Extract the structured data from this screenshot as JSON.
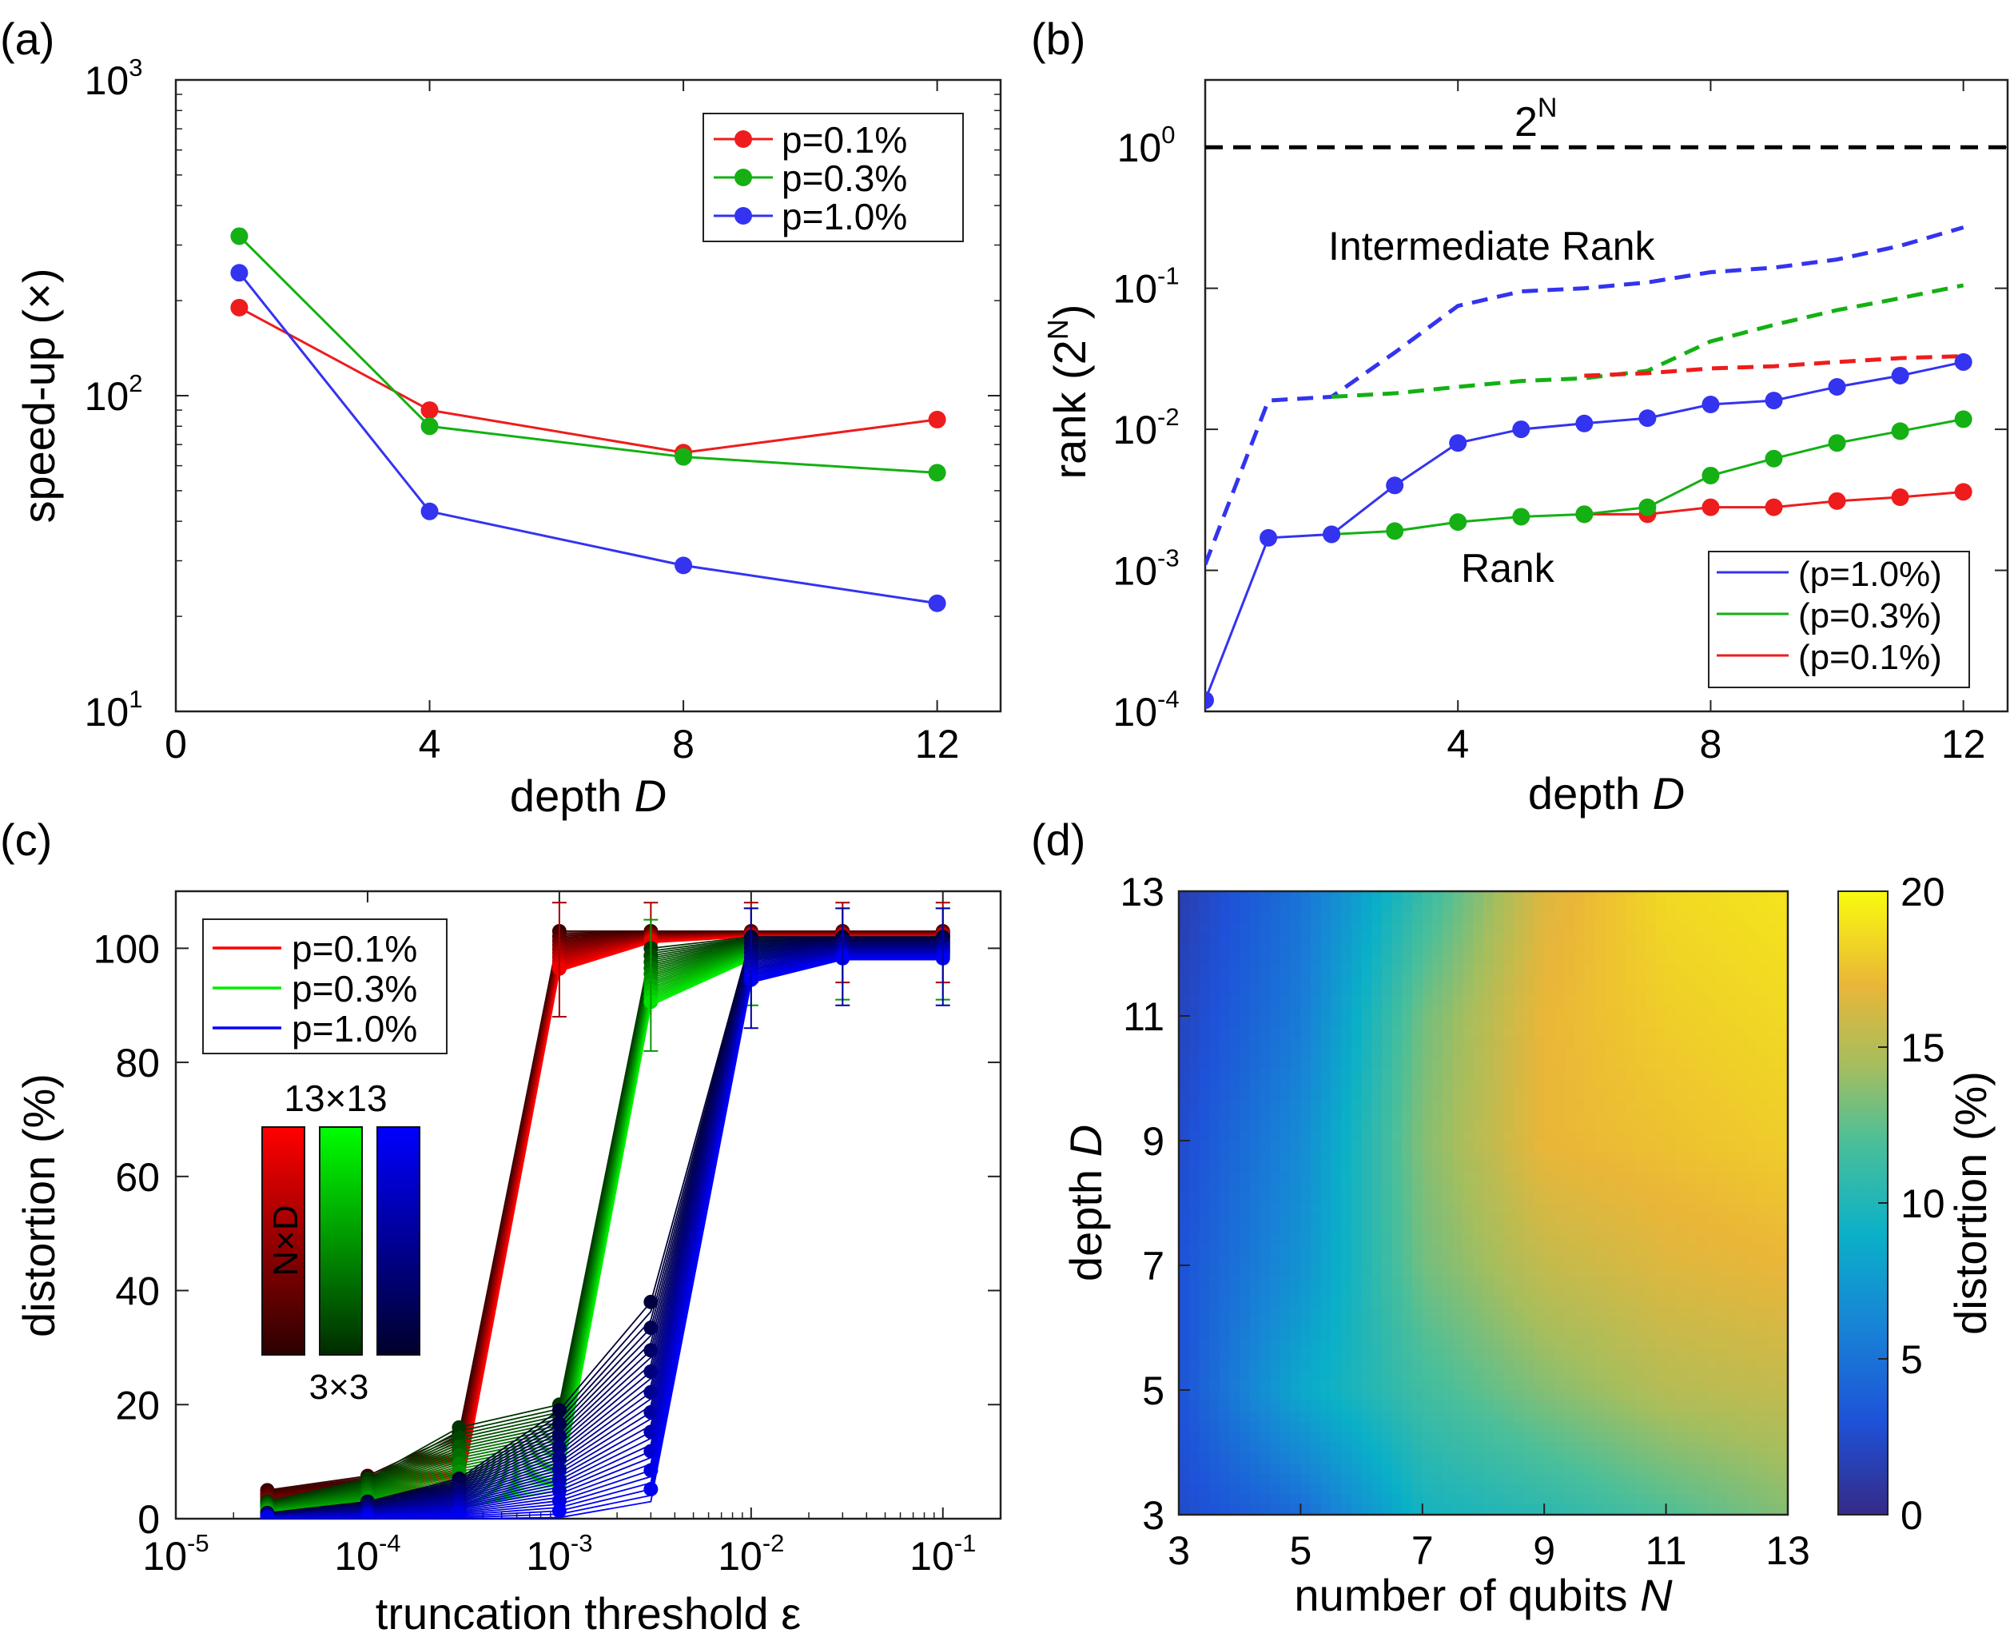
{
  "chart_data": [
    {
      "panel": "(a)",
      "type": "line",
      "xlabel": "depth",
      "xlabel_italic": "D",
      "ylabel": "speed-up (×)",
      "yscale": "log",
      "xlim": [
        0,
        13
      ],
      "ylim": [
        10,
        1000
      ],
      "xticks": [
        "0",
        "4",
        "8",
        "12"
      ],
      "xtick_values": [
        0,
        4,
        8,
        12
      ],
      "yticks": [
        {
          "base": "10",
          "exp": "1"
        },
        {
          "base": "10",
          "exp": "2"
        },
        {
          "base": "10",
          "exp": "3"
        }
      ],
      "ytick_values": [
        10,
        100,
        1000
      ],
      "x": [
        1,
        4,
        8,
        12
      ],
      "series": [
        {
          "name": "p=0.1%",
          "color": "#ee1c1c",
          "values": [
            190,
            90,
            66,
            84
          ]
        },
        {
          "name": "p=0.3%",
          "color": "#14b014",
          "values": [
            320,
            80,
            64,
            57
          ]
        },
        {
          "name": "p=1.0%",
          "color": "#3333f0",
          "values": [
            245,
            43,
            29,
            22
          ]
        }
      ],
      "legend_position": "top-right"
    },
    {
      "panel": "(b)",
      "type": "line",
      "xlabel": "depth",
      "xlabel_italic": "D",
      "ylabel": "rank (2^N)",
      "ylabel_base": "rank (2",
      "ylabel_sup": "N",
      "ylabel_end": ")",
      "yscale": "log",
      "xlim": [
        0,
        12.7
      ],
      "ylim": [
        0.0001,
        3
      ],
      "xticks": [
        "4",
        "8",
        "12"
      ],
      "xtick_values": [
        4,
        8,
        12
      ],
      "yticks": [
        {
          "base": "10",
          "exp": "-4"
        },
        {
          "base": "10",
          "exp": "-3"
        },
        {
          "base": "10",
          "exp": "-2"
        },
        {
          "base": "10",
          "exp": "-1"
        },
        {
          "base": "10",
          "exp": "0"
        }
      ],
      "ytick_values": [
        0.0001,
        0.001,
        0.01,
        0.1,
        1
      ],
      "reference_line": {
        "label_base": "2",
        "label_sup": "N",
        "value": 1
      },
      "annotations": [
        "Intermediate Rank",
        "Rank"
      ],
      "x": [
        0,
        1,
        2,
        3,
        4,
        5,
        6,
        7,
        8,
        9,
        10,
        11,
        12
      ],
      "rank_series": [
        {
          "name": "(p=1.0%)",
          "color": "#3333f0",
          "values": [
            0.00012,
            0.0017,
            0.0018,
            0.004,
            0.008,
            0.01,
            0.011,
            0.012,
            0.015,
            0.016,
            0.02,
            0.024,
            0.03
          ]
        },
        {
          "name": "(p=0.3%)",
          "color": "#14b014",
          "values": [
            null,
            null,
            0.0018,
            0.0019,
            0.0022,
            0.0024,
            0.0025,
            0.0028,
            0.0047,
            0.0062,
            0.008,
            0.0097,
            0.0118
          ]
        },
        {
          "name": "(p=0.1%)",
          "color": "#ee1c1c",
          "values": [
            null,
            null,
            null,
            null,
            null,
            null,
            0.0025,
            0.0025,
            0.0028,
            0.0028,
            0.0031,
            0.0033,
            0.0036
          ]
        }
      ],
      "intermediate_series": [
        {
          "name": "p=1.0% intermediate",
          "color": "#3333f0",
          "values": [
            0.0011,
            0.016,
            0.017,
            0.035,
            0.075,
            0.095,
            0.1,
            0.11,
            0.13,
            0.14,
            0.16,
            0.2,
            0.27
          ]
        },
        {
          "name": "p=0.3% intermediate",
          "color": "#14b014",
          "values": [
            null,
            null,
            0.017,
            0.018,
            0.02,
            0.022,
            0.023,
            0.026,
            0.042,
            0.055,
            0.07,
            0.085,
            0.105
          ]
        },
        {
          "name": "p=0.1% intermediate",
          "color": "#ee1c1c",
          "values": [
            null,
            null,
            null,
            null,
            null,
            null,
            0.024,
            0.025,
            0.027,
            0.028,
            0.03,
            0.032,
            0.033
          ]
        }
      ],
      "legend_position": "bottom-right"
    },
    {
      "panel": "(c)",
      "type": "line",
      "xlabel": "truncation threshold ε",
      "ylabel": "distortion (%)",
      "xscale": "log",
      "xlim": [
        1e-05,
        0.2
      ],
      "ylim": [
        0,
        110
      ],
      "xticks": [
        {
          "base": "10",
          "exp": "-5"
        },
        {
          "base": "10",
          "exp": "-4"
        },
        {
          "base": "10",
          "exp": "-3"
        },
        {
          "base": "10",
          "exp": "-2"
        },
        {
          "base": "10",
          "exp": "-1"
        }
      ],
      "xtick_values": [
        1e-05,
        0.0001,
        0.001,
        0.01,
        0.1
      ],
      "yticks": [
        "0",
        "20",
        "40",
        "60",
        "80",
        "100"
      ],
      "ytick_values": [
        0,
        20,
        40,
        60,
        80,
        100
      ],
      "x": [
        3e-05,
        0.0001,
        0.0003,
        0.001,
        0.003,
        0.01,
        0.03,
        0.1
      ],
      "series": [
        {
          "name": "p=0.1%",
          "color": "#ff0000",
          "low": [
            0.5,
            1.5,
            3,
            96,
            101,
            102,
            102,
            102
          ],
          "high": [
            5,
            7.5,
            15,
            103,
            103,
            103,
            103,
            103
          ]
        },
        {
          "name": "p=0.3%",
          "color": "#00ee00",
          "low": [
            0.3,
            1,
            2,
            5,
            90,
            98,
            99,
            99
          ],
          "high": [
            3,
            7,
            16,
            20,
            100,
            102,
            102,
            102
          ]
        },
        {
          "name": "p=1.0%",
          "color": "#0000ff",
          "low": [
            0,
            0,
            0,
            0.2,
            3,
            94,
            98,
            98
          ],
          "high": [
            1,
            3,
            7,
            19,
            38,
            102,
            102,
            102
          ]
        }
      ],
      "colorbar_top_label": "13×13",
      "colorbar_bottom_label": "3×3",
      "colorbar_axis_label": "N×D",
      "legend_position": "top-left"
    },
    {
      "panel": "(d)",
      "type": "heatmap",
      "xlabel": "number of qubits",
      "xlabel_italic": "N",
      "ylabel": "depth",
      "ylabel_italic": "D",
      "xlim": [
        3,
        13
      ],
      "ylim": [
        3,
        13
      ],
      "xticks": [
        "3",
        "5",
        "7",
        "9",
        "11",
        "13"
      ],
      "xtick_values": [
        3,
        5,
        7,
        9,
        11,
        13
      ],
      "yticks": [
        "3",
        "5",
        "7",
        "9",
        "11",
        "13"
      ],
      "ytick_values": [
        3,
        5,
        7,
        9,
        11,
        13
      ],
      "colorbar_label": "distortion (%)",
      "colorbar_ticks": [
        "0",
        "5",
        "10",
        "15",
        "20"
      ],
      "colorbar_tick_values": [
        0,
        5,
        10,
        15,
        20
      ],
      "clim": [
        0,
        20
      ],
      "x": [
        3,
        5,
        7,
        9,
        11,
        13
      ],
      "y": [
        3,
        5,
        7,
        9,
        11,
        13
      ],
      "z": [
        [
          2.5,
          4.5,
          9.5,
          10.5,
          12.0,
          13.5
        ],
        [
          3.0,
          8.5,
          11.5,
          13.5,
          15.0,
          15.5
        ],
        [
          3.0,
          7.0,
          13.0,
          15.5,
          16.5,
          17.0
        ],
        [
          2.5,
          6.5,
          13.5,
          17.0,
          17.5,
          18.0
        ],
        [
          2.0,
          5.5,
          13.0,
          17.0,
          18.0,
          18.5
        ],
        [
          1.5,
          5.0,
          11.0,
          16.5,
          18.5,
          19.0
        ]
      ]
    }
  ],
  "panel_labels": [
    "(a)",
    "(b)",
    "(c)",
    "(d)"
  ]
}
